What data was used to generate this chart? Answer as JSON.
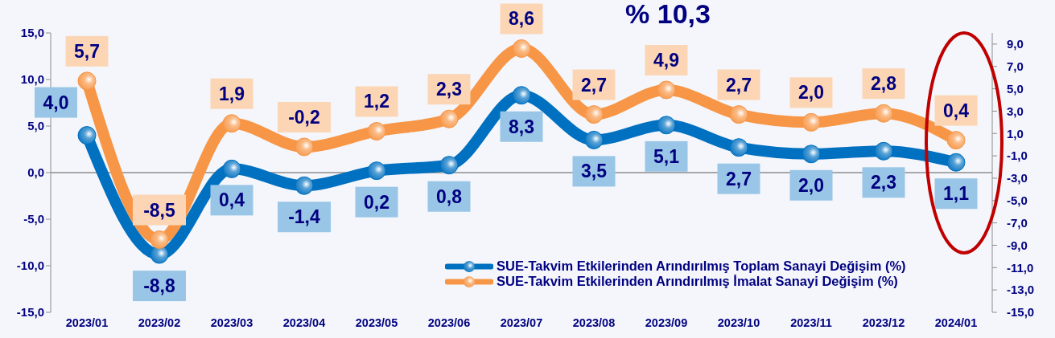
{
  "chart_data": {
    "type": "line",
    "title": "% 10,3",
    "categories": [
      "2023/01",
      "2023/02",
      "2023/03",
      "2023/04",
      "2023/05",
      "2023/06",
      "2023/07",
      "2023/08",
      "2023/09",
      "2023/10",
      "2023/11",
      "2023/12",
      "2024/01"
    ],
    "series": [
      {
        "name": "SUE-Takvim Etkilerinden Arındırılmış Toplam Sanayi Değişim (%)",
        "color": "#0070c0",
        "axis": "y",
        "values": [
          4.0,
          -8.8,
          0.4,
          -1.4,
          0.2,
          0.8,
          8.3,
          3.5,
          5.1,
          2.7,
          2.0,
          2.3,
          1.1
        ],
        "value_labels": [
          "4,0",
          "-8,8",
          "0,4",
          "-1,4",
          "0,2",
          "0,8",
          "8,3",
          "3,5",
          "5,1",
          "2,7",
          "2,0",
          "2,3",
          "1,1"
        ]
      },
      {
        "name": "SUE-Takvim Etkilerinden Arındırılmış İmalat Sanayi Değişim (%)",
        "color": "#f79646",
        "axis": "y2",
        "values": [
          5.7,
          -8.5,
          1.9,
          -0.2,
          1.2,
          2.3,
          8.6,
          2.7,
          4.9,
          2.7,
          2.0,
          2.8,
          0.4
        ],
        "value_labels": [
          "5,7",
          "-8,5",
          "1,9",
          "-0,2",
          "1,2",
          "2,3",
          "8,6",
          "2,7",
          "4,9",
          "2,7",
          "2,0",
          "2,8",
          "0,4"
        ]
      }
    ],
    "ylim": [
      -15,
      15
    ],
    "yticks": [
      {
        "value": -15,
        "label": "-15,0"
      },
      {
        "value": -10,
        "label": "-10,0"
      },
      {
        "value": -5,
        "label": "-5,0"
      },
      {
        "value": 0,
        "label": "0,0"
      },
      {
        "value": 5,
        "label": "5,0"
      },
      {
        "value": 10,
        "label": "10,0"
      },
      {
        "value": 15,
        "label": "15,0"
      }
    ],
    "y2lim": [
      -15,
      10
    ],
    "y2ticks": [
      {
        "value": -15,
        "label": "-15,0"
      },
      {
        "value": -13,
        "label": "-13,0"
      },
      {
        "value": -11,
        "label": "-11,0"
      },
      {
        "value": -9,
        "label": "-9,0"
      },
      {
        "value": -7,
        "label": "-7,0"
      },
      {
        "value": -5,
        "label": "-5,0"
      },
      {
        "value": -3,
        "label": "-3,0"
      },
      {
        "value": -1,
        "label": "-1,0"
      },
      {
        "value": 1,
        "label": "1,0"
      },
      {
        "value": 3,
        "label": "3,0"
      },
      {
        "value": 5,
        "label": "5,0"
      },
      {
        "value": 7,
        "label": "7,0"
      },
      {
        "value": 9,
        "label": "9,0"
      }
    ],
    "legend": "bottom right",
    "marker": "circle",
    "line_style": "solid"
  }
}
